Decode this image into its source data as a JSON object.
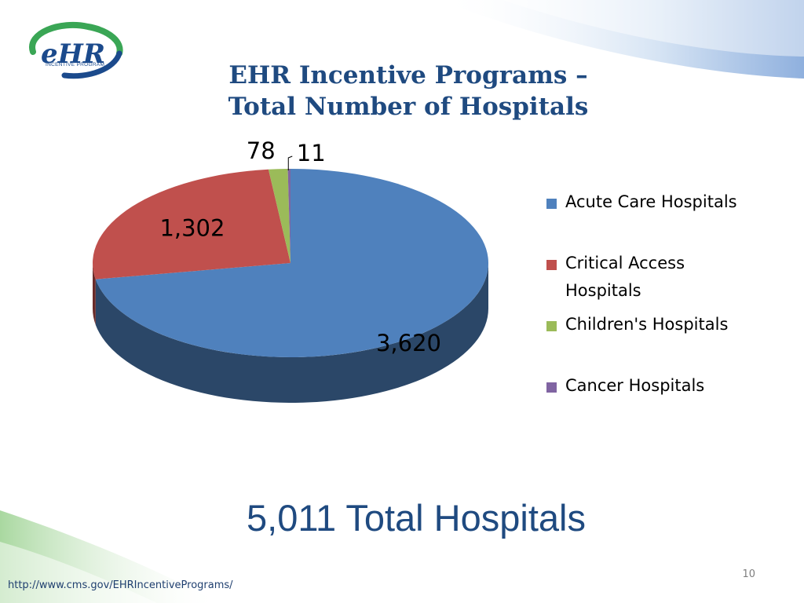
{
  "slide": {
    "title_line1": "EHR Incentive Programs –",
    "title_line2": "Total Number of Hospitals",
    "total_label": "5,011 Total Hospitals",
    "slide_number": "10",
    "source_url": "http://www.cms.gov/EHRIncentivePrograms/"
  },
  "logo": {
    "wordmark": "eHR",
    "tagline": "INCENTIVE PROGRAM",
    "colors": {
      "blue": "#1b4a8c",
      "green": "#3aa655"
    }
  },
  "chart_data": {
    "type": "pie",
    "style": "3d",
    "title": "",
    "categories": [
      "Acute Care Hospitals",
      "Critical Access Hospitals",
      "Children's Hospitals",
      "Cancer Hospitals"
    ],
    "values": [
      3620,
      1302,
      78,
      11
    ],
    "data_labels": [
      "3,620",
      "1,302",
      "78",
      "11"
    ],
    "colors": [
      "#4f81bd",
      "#c0504d",
      "#9bbb59",
      "#8064a2"
    ],
    "legend_position": "right"
  }
}
